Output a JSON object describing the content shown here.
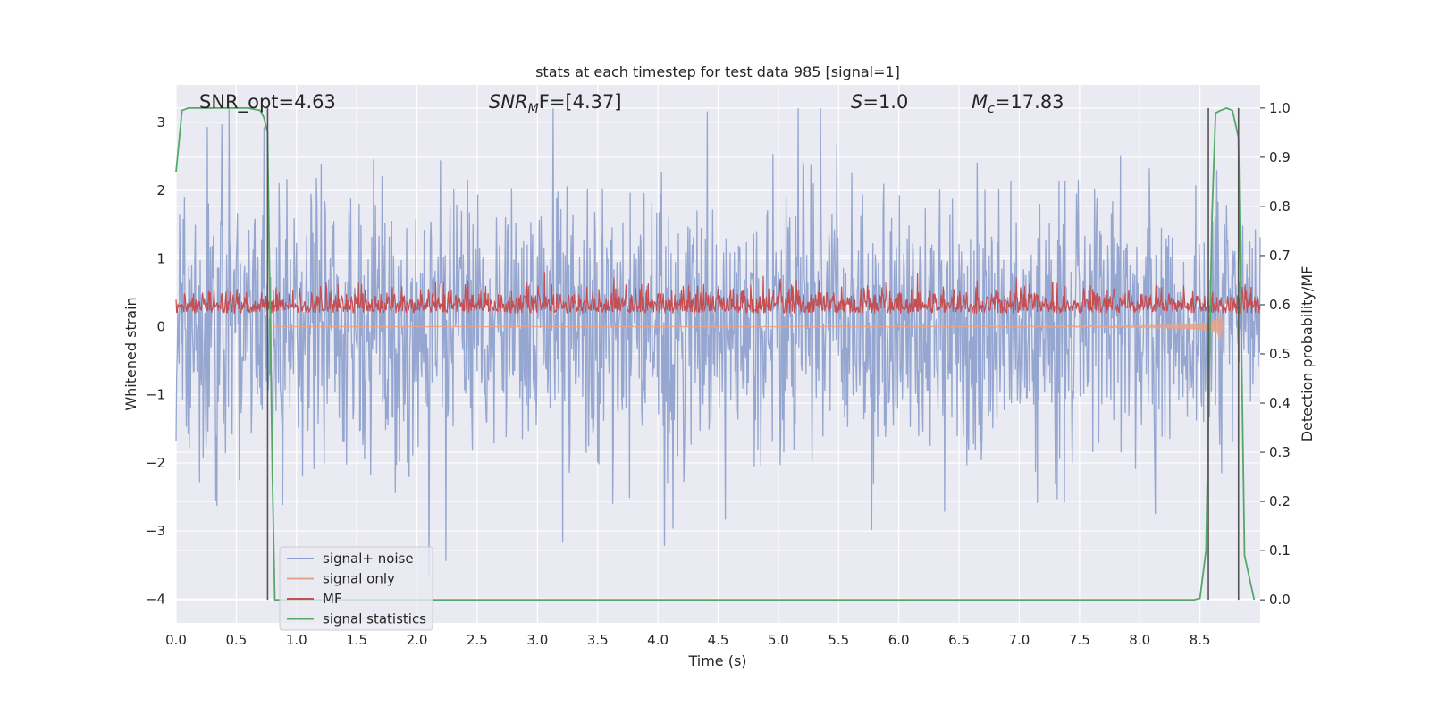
{
  "chart_data": {
    "type": "line",
    "title": "stats at each timestep for test data 985 [signal=1]",
    "xlabel": "Time (s)",
    "ylabel_left": "Whitened strain",
    "ylabel_right": "Detection probability/MF",
    "xlim": [
      0,
      9
    ],
    "ylim_left": [
      -4.35,
      3.55
    ],
    "ylim_right": [
      -0.047,
      1.047
    ],
    "x_ticks": [
      "0.0",
      "0.5",
      "1.0",
      "1.5",
      "2.0",
      "2.5",
      "3.0",
      "3.5",
      "4.0",
      "4.5",
      "5.0",
      "5.5",
      "6.0",
      "6.5",
      "7.0",
      "7.5",
      "8.0",
      "8.5"
    ],
    "y_left_ticks": [
      {
        "value": 3,
        "label": "3"
      },
      {
        "value": 2,
        "label": "2"
      },
      {
        "value": 1,
        "label": "1"
      },
      {
        "value": 0,
        "label": "0"
      },
      {
        "value": -1,
        "label": "−1"
      },
      {
        "value": -2,
        "label": "−2"
      },
      {
        "value": -3,
        "label": "−3"
      },
      {
        "value": -4,
        "label": "−4"
      }
    ],
    "y_right_ticks": [
      "0.0",
      "0.1",
      "0.2",
      "0.3",
      "0.4",
      "0.5",
      "0.6",
      "0.7",
      "0.8",
      "0.9",
      "1.0"
    ],
    "grid": true,
    "legend_position": "bottom-left",
    "annotations": {
      "snr_opt": "SNR_opt=4.63",
      "snr_mf_main": "SNR",
      "snr_mf_sub": "M",
      "snr_mf_rest": "F=[4.37]",
      "s_main": "S",
      "s_rest": "=1.0",
      "mc_main": "M",
      "mc_sub": "c",
      "mc_rest": "=17.83"
    },
    "vertical_markers_x": [
      0.76,
      8.57,
      8.82
    ],
    "series": [
      {
        "name": "signal+ noise",
        "color": "#8c9fcc",
        "axis": "left",
        "note": "whitened noise, roughly ±1.8 with spikes to about ±3"
      },
      {
        "name": "signal only",
        "color": "#e6a28a",
        "axis": "left",
        "note": "chirp amplitude grows near merger at t≈8.7 s"
      },
      {
        "name": "MF",
        "color": "#c44e52",
        "axis": "right",
        "note": "fluctuates around 0.6, range about 0.58–0.72"
      },
      {
        "name": "signal statistics",
        "color": "#55a868",
        "axis": "right",
        "x": [
          0.0,
          0.05,
          0.1,
          0.2,
          0.3,
          0.4,
          0.5,
          0.6,
          0.7,
          0.73,
          0.76,
          0.8,
          0.82,
          1.0,
          2.0,
          3.0,
          4.0,
          5.0,
          6.0,
          7.0,
          8.0,
          8.45,
          8.5,
          8.55,
          8.6,
          8.63,
          8.67,
          8.72,
          8.77,
          8.82,
          8.87,
          8.95
        ],
        "y": [
          0.87,
          0.995,
          1.0,
          1.0,
          1.0,
          1.0,
          1.0,
          1.0,
          0.995,
          0.98,
          0.95,
          0.25,
          0.0,
          0.0,
          0.0,
          0.0,
          0.0,
          0.0,
          0.0,
          0.0,
          0.0,
          0.0,
          0.003,
          0.1,
          0.78,
          0.99,
          0.995,
          1.0,
          0.995,
          0.94,
          0.09,
          0.0
        ]
      }
    ]
  }
}
